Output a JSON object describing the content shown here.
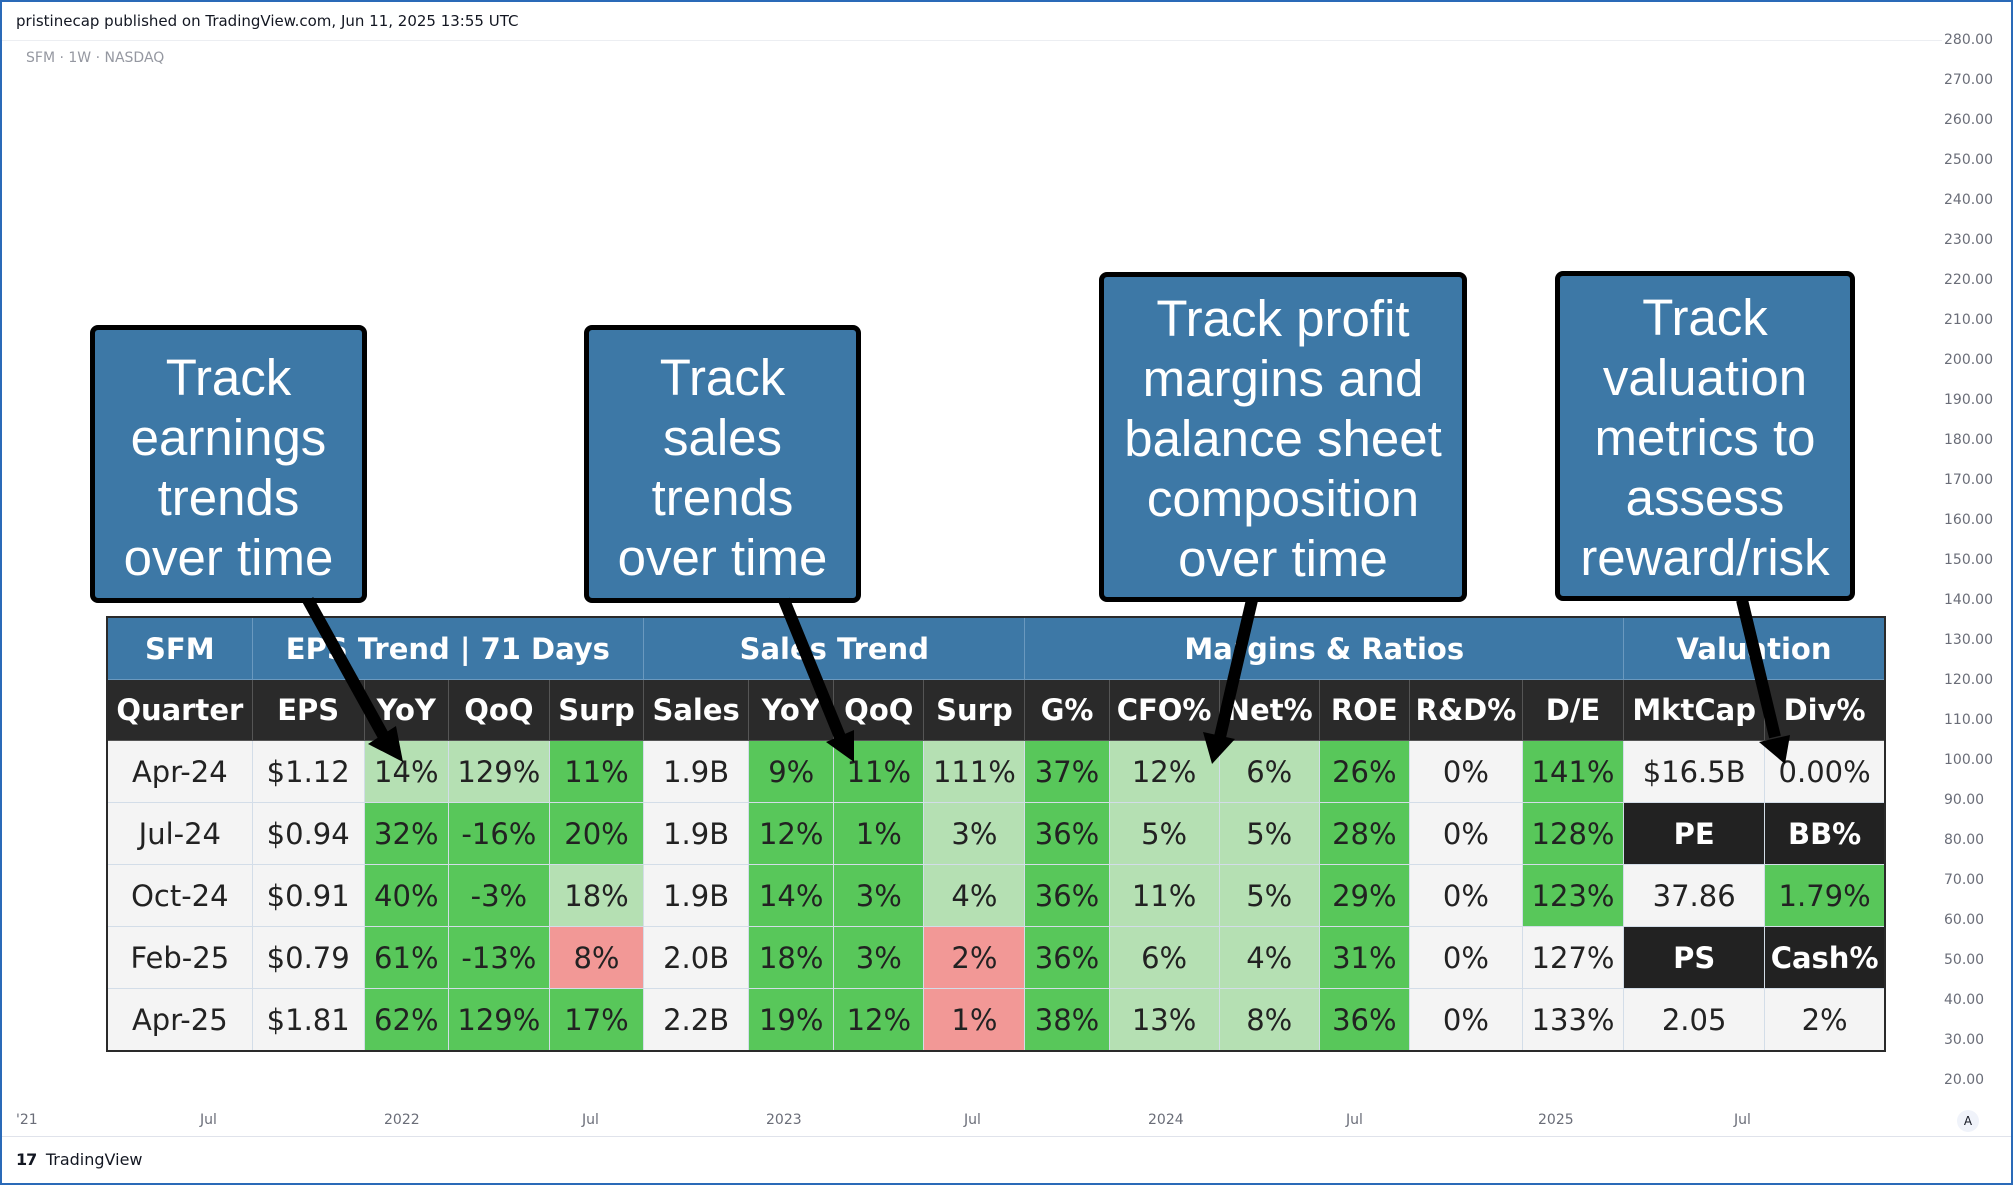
{
  "header": {
    "published": "pristinecap published on TradingView.com, Jun 11, 2025 13:55 UTC",
    "symbol": "SFM · 1W · NASDAQ"
  },
  "price_axis": [
    "280.00",
    "270.00",
    "260.00",
    "250.00",
    "240.00",
    "230.00",
    "220.00",
    "210.00",
    "200.00",
    "190.00",
    "180.00",
    "170.00",
    "160.00",
    "150.00",
    "140.00",
    "130.00",
    "120.00",
    "110.00",
    "100.00",
    "90.00",
    "80.00",
    "70.00",
    "60.00",
    "50.00",
    "40.00",
    "30.00",
    "20.00"
  ],
  "time_axis": [
    "'21",
    "Jul",
    "2022",
    "Jul",
    "2023",
    "Jul",
    "2024",
    "Jul",
    "2025",
    "Jul"
  ],
  "auto_label": "A",
  "footer": {
    "brand": "TradingView",
    "mark": "17"
  },
  "callouts": [
    {
      "lines": [
        "Track",
        "earnings",
        "trends",
        "over time"
      ]
    },
    {
      "lines": [
        "Track",
        "sales",
        "trends",
        "over time"
      ]
    },
    {
      "lines": [
        "Track profit",
        "margins and",
        "balance sheet",
        "composition",
        "over time"
      ]
    },
    {
      "lines": [
        "Track",
        "valuation",
        "metrics to",
        "assess",
        "reward/risk"
      ]
    }
  ],
  "chart_data": {
    "type": "table",
    "groups": [
      "SFM",
      "EPS Trend | 71 Days",
      "Sales Trend",
      "Margins & Ratios",
      "Valuation"
    ],
    "columns": [
      "Quarter",
      "EPS",
      "YoY",
      "QoQ",
      "Surp",
      "Sales",
      "YoY",
      "QoQ",
      "Surp",
      "G%",
      "CFO%",
      "Net%",
      "ROE",
      "R&D%",
      "D/E",
      "MktCap",
      "Div%"
    ],
    "rows": [
      [
        "Apr-24",
        "$1.12",
        "14%",
        "129%",
        "11%",
        "1.9B",
        "9%",
        "11%",
        "111%",
        "37%",
        "12%",
        "6%",
        "26%",
        "0%",
        "141%",
        "$16.5B",
        "0.00%"
      ],
      [
        "Jul-24",
        "$0.94",
        "32%",
        "-16%",
        "20%",
        "1.9B",
        "12%",
        "1%",
        "3%",
        "36%",
        "5%",
        "5%",
        "28%",
        "0%",
        "128%",
        "PE",
        "BB%"
      ],
      [
        "Oct-24",
        "$0.91",
        "40%",
        "-3%",
        "18%",
        "1.9B",
        "14%",
        "3%",
        "4%",
        "36%",
        "11%",
        "5%",
        "29%",
        "0%",
        "123%",
        "37.86",
        "1.79%"
      ],
      [
        "Feb-25",
        "$0.79",
        "61%",
        "-13%",
        "8%",
        "2.0B",
        "18%",
        "3%",
        "2%",
        "36%",
        "6%",
        "4%",
        "31%",
        "0%",
        "127%",
        "PS",
        "Cash%"
      ],
      [
        "Apr-25",
        "$1.81",
        "62%",
        "129%",
        "17%",
        "2.2B",
        "19%",
        "12%",
        "1%",
        "38%",
        "13%",
        "8%",
        "36%",
        "0%",
        "133%",
        "2.05",
        "2%"
      ]
    ],
    "cell_colors": [
      [
        "w",
        "w",
        "lg",
        "lg",
        "g",
        "w",
        "g",
        "g",
        "lg",
        "g",
        "lg",
        "lg",
        "g",
        "w",
        "g",
        "w",
        "w"
      ],
      [
        "w",
        "w",
        "g",
        "g",
        "g",
        "w",
        "g",
        "g",
        "lg",
        "g",
        "lg",
        "lg",
        "g",
        "w",
        "g",
        "d",
        "d"
      ],
      [
        "w",
        "w",
        "g",
        "g",
        "lg",
        "w",
        "g",
        "g",
        "lg",
        "g",
        "lg",
        "lg",
        "g",
        "w",
        "g",
        "w",
        "g"
      ],
      [
        "w",
        "w",
        "g",
        "g",
        "r",
        "w",
        "g",
        "g",
        "r",
        "g",
        "lg",
        "lg",
        "g",
        "w",
        "w",
        "d",
        "d"
      ],
      [
        "w",
        "w",
        "g",
        "g",
        "g",
        "w",
        "g",
        "g",
        "r",
        "g",
        "lg",
        "lg",
        "g",
        "w",
        "w",
        "w",
        "w"
      ]
    ],
    "colors": {
      "header_blue": "#3d78a6",
      "header_dark": "#2a2a2a",
      "green": "#58c75a",
      "light_green": "#b5e0b3",
      "red": "#f29896",
      "neutral": "#f4f4f4"
    }
  }
}
